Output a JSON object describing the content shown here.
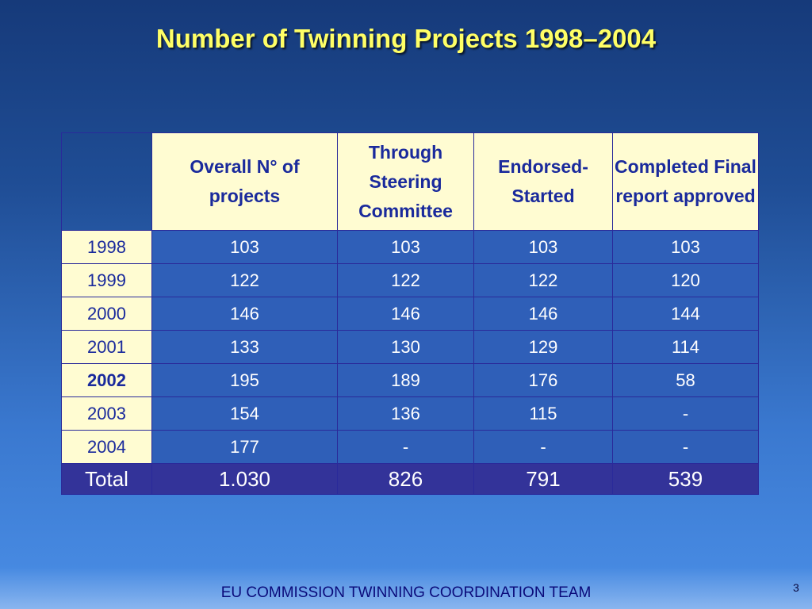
{
  "title": "Number of Twinning Projects 1998–2004",
  "table": {
    "headers": [
      "Overall N° of projects",
      "Through Steering Committee",
      "Endorsed-Started",
      "Completed Final report approved"
    ],
    "rows": [
      {
        "year": "1998",
        "values": [
          "103",
          "103",
          "103",
          "103"
        ]
      },
      {
        "year": "1999",
        "values": [
          "122",
          "122",
          "122",
          "120"
        ]
      },
      {
        "year": "2000",
        "values": [
          "146",
          "146",
          "146",
          "144"
        ]
      },
      {
        "year": "2001",
        "values": [
          "133",
          "130",
          "129",
          "114"
        ]
      },
      {
        "year": "2002",
        "values": [
          "195",
          "189",
          "176",
          "58"
        ]
      },
      {
        "year": "2003",
        "values": [
          "154",
          "136",
          "115",
          "-"
        ]
      },
      {
        "year": "2004",
        "values": [
          "177",
          "-",
          "-",
          "-"
        ]
      }
    ],
    "total": {
      "label": "Total",
      "values": [
        "1.030",
        "826",
        "791",
        "539"
      ]
    }
  },
  "footer": "EU COMMISSION TWINNING COORDINATION TEAM",
  "page_number": "3"
}
